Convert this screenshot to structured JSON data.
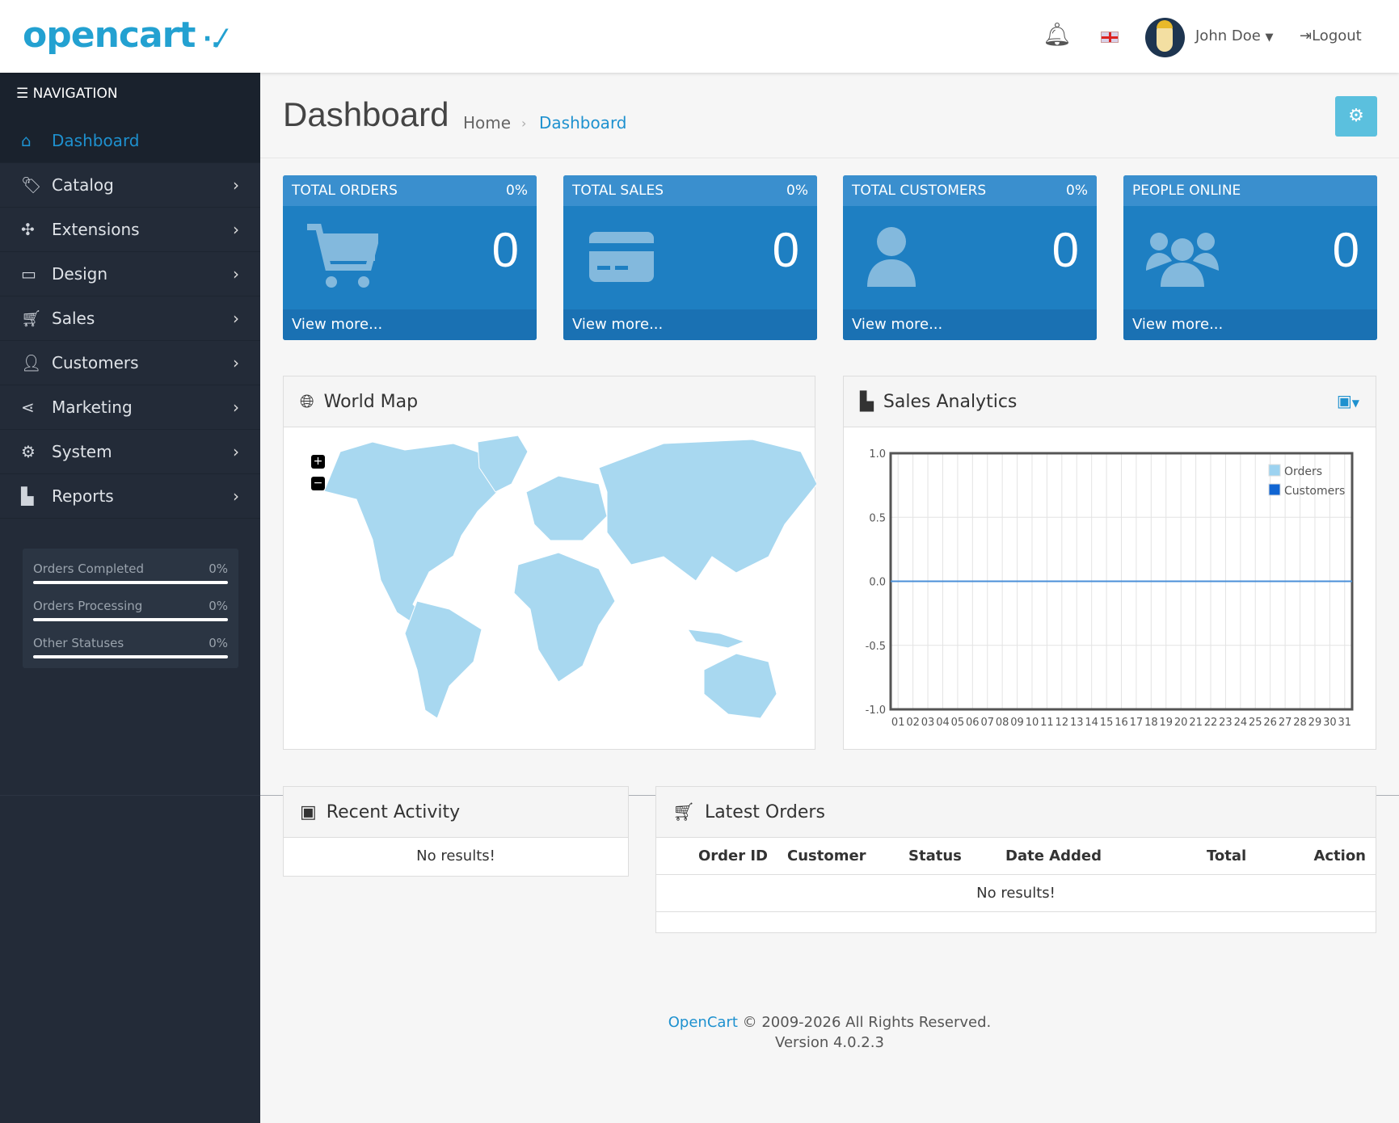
{
  "header": {
    "logo": "opencart",
    "user_name": "John Doe",
    "logout": "Logout",
    "icons": {
      "notifications": "bell-icon",
      "language": "uk-flag-icon",
      "user_menu": "caret-down-icon",
      "logout": "sign-out-icon"
    }
  },
  "sidebar": {
    "nav_title": "NAVIGATION",
    "items": [
      {
        "label": "Dashboard",
        "icon": "home-icon",
        "active": true
      },
      {
        "label": "Catalog",
        "icon": "tag-icon"
      },
      {
        "label": "Extensions",
        "icon": "puzzle-icon"
      },
      {
        "label": "Design",
        "icon": "monitor-icon"
      },
      {
        "label": "Sales",
        "icon": "cart-icon"
      },
      {
        "label": "Customers",
        "icon": "user-icon"
      },
      {
        "label": "Marketing",
        "icon": "share-icon"
      },
      {
        "label": "System",
        "icon": "gear-icon"
      },
      {
        "label": "Reports",
        "icon": "chart-bar-icon"
      }
    ],
    "stats": [
      {
        "label": "Orders Completed",
        "value": "0%",
        "progress": 0
      },
      {
        "label": "Orders Processing",
        "value": "0%",
        "progress": 0
      },
      {
        "label": "Other Statuses",
        "value": "0%",
        "progress": 0
      }
    ]
  },
  "page": {
    "title": "Dashboard",
    "breadcrumb": [
      "Home",
      "Dashboard"
    ]
  },
  "tiles": [
    {
      "title": "TOTAL ORDERS",
      "percent": "0%",
      "value": "0",
      "link": "View more...",
      "icon": "cart-icon"
    },
    {
      "title": "TOTAL SALES",
      "percent": "0%",
      "value": "0",
      "link": "View more...",
      "icon": "credit-card-icon"
    },
    {
      "title": "TOTAL CUSTOMERS",
      "percent": "0%",
      "value": "0",
      "link": "View more...",
      "icon": "user-icon"
    },
    {
      "title": "PEOPLE ONLINE",
      "percent": "",
      "value": "0",
      "link": "View more...",
      "icon": "users-icon"
    }
  ],
  "world_map": {
    "title": "World Map",
    "zoom_in": "+",
    "zoom_out": "−",
    "land_color": "#a8d8f0"
  },
  "sales_analytics": {
    "title": "Sales Analytics"
  },
  "chart_data": {
    "type": "line",
    "categories": [
      "01",
      "02",
      "03",
      "04",
      "05",
      "06",
      "07",
      "08",
      "09",
      "10",
      "11",
      "12",
      "13",
      "14",
      "15",
      "16",
      "17",
      "18",
      "19",
      "20",
      "21",
      "22",
      "23",
      "24",
      "25",
      "26",
      "27",
      "28",
      "29",
      "30",
      "31"
    ],
    "series": [
      {
        "name": "Orders",
        "color": "#9cd2f0",
        "values": [
          0,
          0,
          0,
          0,
          0,
          0,
          0,
          0,
          0,
          0,
          0,
          0,
          0,
          0,
          0,
          0,
          0,
          0,
          0,
          0,
          0,
          0,
          0,
          0,
          0,
          0,
          0,
          0,
          0,
          0,
          0
        ]
      },
      {
        "name": "Customers",
        "color": "#1065d2",
        "values": [
          0,
          0,
          0,
          0,
          0,
          0,
          0,
          0,
          0,
          0,
          0,
          0,
          0,
          0,
          0,
          0,
          0,
          0,
          0,
          0,
          0,
          0,
          0,
          0,
          0,
          0,
          0,
          0,
          0,
          0,
          0
        ]
      }
    ],
    "ylim": [
      -1,
      1
    ],
    "yticks": [
      "1.0",
      "0.5",
      "0.0",
      "-0.5",
      "-1.0"
    ],
    "grid": true,
    "legend": "top-right"
  },
  "recent_activity": {
    "title": "Recent Activity",
    "empty": "No results!"
  },
  "latest_orders": {
    "title": "Latest Orders",
    "columns": [
      "Order ID",
      "Customer",
      "Status",
      "Date Added",
      "Total",
      "Action"
    ],
    "empty": "No results!"
  },
  "footer": {
    "brand": "OpenCart",
    "copyright": " © 2009-2026 All Rights Reserved.",
    "version": "Version 4.0.2.3"
  }
}
